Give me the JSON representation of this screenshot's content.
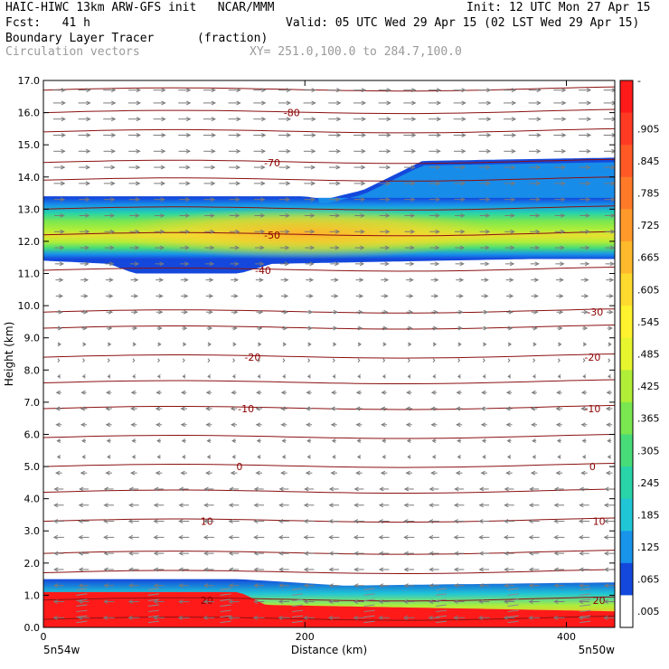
{
  "header": {
    "line1_left": "HAIC-HIWC 13km ARW-GFS init   NCAR/MMM",
    "line1_right": "Init: 12 UTC Mon 27 Apr 15",
    "line2_left": "Fcst:   41 h",
    "line2_right": "Valid: 05 UTC Wed 29 Apr 15 (02 LST Wed 29 Apr 15)",
    "field_name": "Boundary Layer Tracer",
    "field_units": "(fraction)",
    "vector_name": "Circulation vectors",
    "cross_section": "XY= 251.0,100.0 to 284.7,100.0"
  },
  "chart_data": {
    "type": "heatmap",
    "xlabel": "Distance (km)",
    "ylabel": "Height (km)",
    "x_ticks": [
      "0",
      "200",
      "400"
    ],
    "x_tick_values": [
      0,
      200,
      400
    ],
    "xlim": [
      0,
      437
    ],
    "ylim": [
      0,
      17
    ],
    "y_ticks": [
      "0.0",
      "1.0",
      "2.0",
      "3.0",
      "4.0",
      "5.0",
      "6.0",
      "7.0",
      "8.0",
      "9.0",
      "10.0",
      "11.0",
      "12.0",
      "13.0",
      "14.0",
      "15.0",
      "16.0",
      "17.0"
    ],
    "x_endpoint_labels": {
      "left": "5n54w",
      "right": "5n50w"
    },
    "grid": false,
    "colorbar": {
      "labels": [
        "-",
        ".905",
        ".845",
        ".785",
        ".725",
        ".665",
        ".605",
        ".545",
        ".485",
        ".425",
        ".365",
        ".305",
        ".245",
        ".185",
        ".125",
        ".065",
        ".005"
      ],
      "colors": [
        "#ff1a1a",
        "#ff3a22",
        "#ff5a25",
        "#ff7a28",
        "#ff9a2a",
        "#ffba2c",
        "#ffda2e",
        "#fff22e",
        "#e6f52e",
        "#b0ee38",
        "#7ae650",
        "#48dc78",
        "#28d4a8",
        "#20c6d6",
        "#1894ea",
        "#1448dc",
        "#ffffff"
      ]
    },
    "tracer_field": {
      "upper_layer": {
        "base_km": [
          [
            0,
            11.4
          ],
          [
            50,
            11.3
          ],
          [
            70,
            11.0
          ],
          [
            150,
            11.0
          ],
          [
            175,
            11.3
          ],
          [
            437,
            11.5
          ]
        ],
        "top_km": [
          [
            0,
            13.4
          ],
          [
            200,
            13.4
          ],
          [
            215,
            13.3
          ],
          [
            245,
            13.6
          ],
          [
            265,
            14.0
          ],
          [
            290,
            14.5
          ],
          [
            437,
            14.6
          ]
        ],
        "core_km": 12.25,
        "peak_value": 0.74
      },
      "boundary_layer": {
        "top_km": [
          [
            0,
            1.5
          ],
          [
            150,
            1.5
          ],
          [
            230,
            1.3
          ],
          [
            437,
            1.4
          ]
        ],
        "red_top_km": [
          [
            0,
            1.1
          ],
          [
            150,
            1.1
          ],
          [
            170,
            0.7
          ],
          [
            437,
            0.5
          ]
        ],
        "red_start_x": 0
      }
    },
    "temperature_contours": [
      {
        "label": "-80",
        "y_km": 16.0,
        "label_x": 190
      },
      {
        "label": "-70",
        "y_km": 14.45,
        "label_x": 175
      },
      {
        "label": "-50",
        "y_km": 12.2,
        "label_x": 175
      },
      {
        "label": "-40",
        "y_km": 11.1,
        "label_x": 168
      },
      {
        "label": "-30",
        "y_km": 9.8,
        "label_x": 422
      },
      {
        "label": "-20",
        "y_km": 8.4,
        "label_x": 160,
        "label_x2": 420
      },
      {
        "label": "-10",
        "y_km": 6.8,
        "label_x": 155,
        "label_x2": 420
      },
      {
        "label": "0",
        "y_km": 5.0,
        "label_x": 150,
        "label_x2": 420
      },
      {
        "label": "10",
        "y_km": 3.3,
        "label_x": 125,
        "label_x2": 425
      },
      {
        "label": "20",
        "y_km": 0.85,
        "label_x": 125,
        "label_x2": 425
      }
    ],
    "unlabeled_contours_km": [
      16.7,
      15.4,
      13.9,
      13.0,
      9.3,
      7.6,
      5.9,
      4.2,
      2.3,
      1.7,
      0.25
    ],
    "wind_profile": [
      {
        "z_km": 16.7,
        "u": 1.0
      },
      {
        "z_km": 16.3,
        "u": 1.0
      },
      {
        "z_km": 15.8,
        "u": 1.0
      },
      {
        "z_km": 15.3,
        "u": 1.0
      },
      {
        "z_km": 14.8,
        "u": 0.95
      },
      {
        "z_km": 14.3,
        "u": 0.9
      },
      {
        "z_km": 13.8,
        "u": 0.9
      },
      {
        "z_km": 13.3,
        "u": 0.85
      },
      {
        "z_km": 12.8,
        "u": 0.8
      },
      {
        "z_km": 12.3,
        "u": 0.8
      },
      {
        "z_km": 11.8,
        "u": 0.75
      },
      {
        "z_km": 11.3,
        "u": 0.7
      },
      {
        "z_km": 10.8,
        "u": 0.6
      },
      {
        "z_km": 10.3,
        "u": 0.55
      },
      {
        "z_km": 9.8,
        "u": 0.5
      },
      {
        "z_km": 9.3,
        "u": 0.4
      },
      {
        "z_km": 8.8,
        "u": 0.25
      },
      {
        "z_km": 8.3,
        "u": 0.05
      },
      {
        "z_km": 7.8,
        "u": -0.2
      },
      {
        "z_km": 7.3,
        "u": -0.4
      },
      {
        "z_km": 6.8,
        "u": -0.5
      },
      {
        "z_km": 6.3,
        "u": -0.45
      },
      {
        "z_km": 5.8,
        "u": -0.3
      },
      {
        "z_km": 5.3,
        "u": -0.25
      },
      {
        "z_km": 4.8,
        "u": -0.5
      },
      {
        "z_km": 4.3,
        "u": -0.75
      },
      {
        "z_km": 3.8,
        "u": -0.8
      },
      {
        "z_km": 3.3,
        "u": -0.85
      },
      {
        "z_km": 2.8,
        "u": -0.85
      },
      {
        "z_km": 2.3,
        "u": -0.8
      },
      {
        "z_km": 1.8,
        "u": -0.8
      },
      {
        "z_km": 1.3,
        "u": -0.8
      },
      {
        "z_km": 0.8,
        "u": -0.85
      },
      {
        "z_km": 0.3,
        "u": -0.9
      }
    ]
  }
}
